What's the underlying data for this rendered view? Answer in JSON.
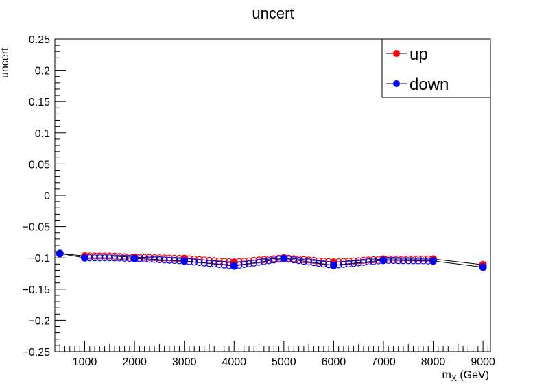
{
  "chart_data": {
    "type": "scatter",
    "title": "uncert",
    "xlabel_main": "m",
    "xlabel_sub": "X",
    "xlabel_unit": " (GeV)",
    "ylabel": "uncert",
    "xlim": [
      400,
      9150
    ],
    "ylim": [
      -0.25,
      0.25
    ],
    "xticks": [
      1000,
      2000,
      3000,
      4000,
      5000,
      6000,
      7000,
      8000,
      9000
    ],
    "yticks": [
      -0.25,
      -0.2,
      -0.15,
      -0.1,
      -0.05,
      0,
      0.05,
      0.1,
      0.15,
      0.2,
      0.25
    ],
    "ytick_labels": [
      "−0.25",
      "−0.2",
      "−0.15",
      "−0.1",
      "−0.05",
      "0",
      "0.05",
      "0.1",
      "0.15",
      "0.2",
      "0.25"
    ],
    "legend_position": "top-right",
    "series": [
      {
        "name": "up",
        "color": "#ff0000",
        "key_points": [
          [
            500,
            -0.093
          ],
          [
            1000,
            -0.097
          ],
          [
            1500,
            -0.097
          ],
          [
            2000,
            -0.099
          ],
          [
            3000,
            -0.101
          ],
          [
            4000,
            -0.107
          ],
          [
            5000,
            -0.1
          ],
          [
            6000,
            -0.107
          ],
          [
            7000,
            -0.102
          ],
          [
            8000,
            -0.102
          ],
          [
            9000,
            -0.111
          ]
        ],
        "filled_x": [
          500,
          1000,
          2000,
          3000,
          4000,
          5000,
          6000,
          7000,
          8000,
          9000
        ]
      },
      {
        "name": "down",
        "color": "#0000ff",
        "key_points": [
          [
            500,
            -0.093
          ],
          [
            1000,
            -0.1
          ],
          [
            1500,
            -0.1
          ],
          [
            2000,
            -0.101
          ],
          [
            3000,
            -0.105
          ],
          [
            4000,
            -0.113
          ],
          [
            5000,
            -0.101
          ],
          [
            6000,
            -0.112
          ],
          [
            7000,
            -0.104
          ],
          [
            8000,
            -0.105
          ],
          [
            9000,
            -0.115
          ]
        ],
        "filled_x": [
          500,
          1000,
          2000,
          3000,
          4000,
          5000,
          6000,
          7000,
          8000,
          9000
        ]
      }
    ]
  }
}
